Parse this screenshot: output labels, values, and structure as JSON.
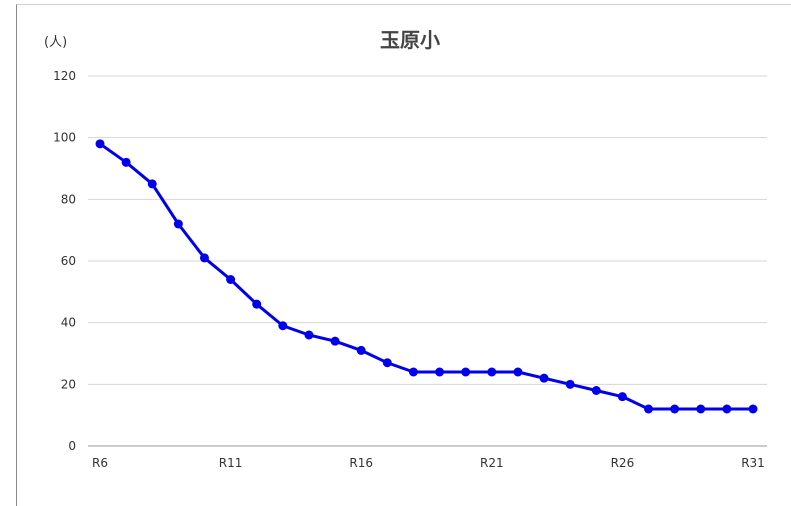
{
  "chart_data": {
    "type": "line",
    "title": "玉原小",
    "y_unit_label": "(人)",
    "x": [
      "R6",
      "R7",
      "R8",
      "R9",
      "R10",
      "R11",
      "R12",
      "R13",
      "R14",
      "R15",
      "R16",
      "R17",
      "R18",
      "R19",
      "R20",
      "R21",
      "R22",
      "R23",
      "R24",
      "R25",
      "R26",
      "R27",
      "R28",
      "R29",
      "R30",
      "R31"
    ],
    "x_tick_labels": [
      "R6",
      "R11",
      "R16",
      "R21",
      "R26",
      "R31"
    ],
    "series": [
      {
        "values": [
          98,
          92,
          85,
          72,
          61,
          54,
          46,
          39,
          36,
          34,
          31,
          27,
          24,
          24,
          24,
          24,
          24,
          22,
          20,
          18,
          16,
          12,
          12,
          12,
          12,
          12
        ],
        "color": "#0000ee"
      }
    ],
    "ylim": [
      0,
      120
    ],
    "y_ticks": [
      0,
      20,
      40,
      60,
      80,
      100,
      120
    ],
    "grid": true,
    "legend": "none"
  }
}
